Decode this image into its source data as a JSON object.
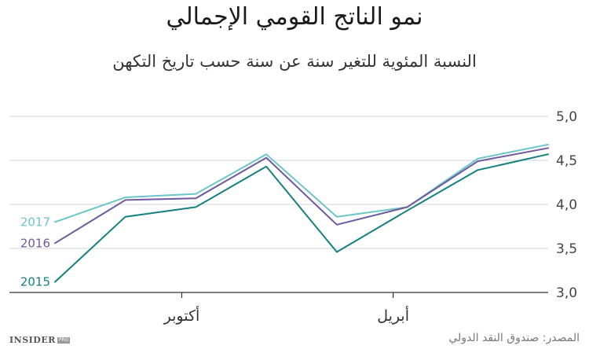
{
  "header": {
    "title": "نمو الناتج القومي الإجمالي",
    "subtitle": "النسبة المئوية للتغير سنة عن سنة حسب تاريخ التكهن"
  },
  "footer": {
    "source": "المصدر: صندوق النقد الدولي",
    "logo_main": "INSIDER",
    "logo_pro": "PRO"
  },
  "chart_data": {
    "type": "line",
    "title": "نمو الناتج القومي الإجمالي",
    "subtitle": "النسبة المئوية للتغير سنة عن سنة حسب تاريخ التكهن",
    "ylim": [
      3.0,
      5.0
    ],
    "yticks": [
      3.0,
      3.5,
      4.0,
      4.5,
      5.0
    ],
    "ytick_labels": [
      "3,0",
      "3,5",
      "4,0",
      "4,5",
      "5,0"
    ],
    "x_count": 7,
    "x_ticks": [
      {
        "index": 1.8,
        "label": "أكتوبر"
      },
      {
        "index": 4.8,
        "label": "أبريل"
      }
    ],
    "grid": true,
    "series": [
      {
        "name": "2017",
        "color": "#6cc5c8",
        "values": [
          3.8,
          4.08,
          4.12,
          4.57,
          3.86,
          3.97,
          4.52,
          4.68
        ]
      },
      {
        "name": "2016",
        "color": "#6e5a9e",
        "values": [
          3.56,
          4.05,
          4.07,
          4.53,
          3.77,
          3.97,
          4.49,
          4.64
        ]
      },
      {
        "name": "2015",
        "color": "#148080",
        "values": [
          3.12,
          3.86,
          3.97,
          4.43,
          3.46,
          3.93,
          4.39,
          4.57
        ]
      }
    ]
  }
}
